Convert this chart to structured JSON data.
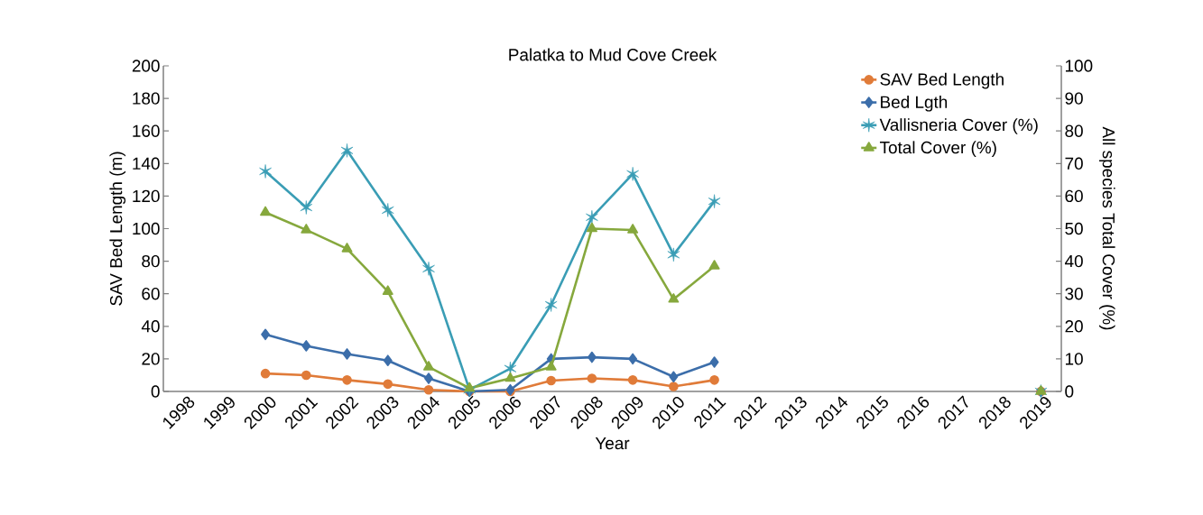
{
  "chart_data": {
    "type": "line",
    "title": "Palatka to Mud Cove Creek",
    "xlabel": "Year",
    "ylabel": "SAV Bed Length (m)",
    "y2label": "All species Total Cover (%)",
    "categories": [
      "1998",
      "1999",
      "2000",
      "2001",
      "2002",
      "2003",
      "2004",
      "2005",
      "2006",
      "2007",
      "2008",
      "2009",
      "2010",
      "2011",
      "2012",
      "2013",
      "2014",
      "2015",
      "2016",
      "2017",
      "2018",
      "2019"
    ],
    "series": [
      {
        "name": "SAV Bed Length",
        "color": "#e07b39",
        "marker": "circle",
        "values": [
          null,
          null,
          11,
          10,
          7,
          4.5,
          1,
          0,
          0,
          6.6,
          8,
          7,
          3,
          7,
          null,
          null,
          null,
          null,
          null,
          null,
          null,
          0
        ]
      },
      {
        "name": "Bed Lgth",
        "color": "#3c6eaa",
        "marker": "diamond",
        "values": [
          null,
          null,
          35,
          28,
          23,
          19,
          8,
          0,
          1,
          20,
          21,
          20,
          9,
          18,
          null,
          null,
          null,
          null,
          null,
          null,
          null,
          0
        ]
      },
      {
        "name": "Vallisneria Cover (%)",
        "color": "#3a9db5",
        "marker": "cross",
        "axis": "y2",
        "values": [
          null,
          null,
          67.6,
          56.5,
          74,
          55.7,
          37.7,
          0.5,
          7,
          26.6,
          53.5,
          66.8,
          42,
          58.4,
          null,
          null,
          null,
          null,
          null,
          null,
          null,
          0
        ]
      },
      {
        "name": "Total Cover (%)",
        "color": "#86a83d",
        "marker": "triangle",
        "axis": "y2",
        "values": [
          null,
          null,
          55,
          49.6,
          43.8,
          30.7,
          7.5,
          1,
          4,
          7.5,
          50,
          49.6,
          28.3,
          38.5,
          null,
          null,
          null,
          null,
          null,
          null,
          null,
          0
        ]
      }
    ],
    "ylim": [
      0,
      200
    ],
    "yticks": [
      0,
      20,
      40,
      60,
      80,
      100,
      120,
      140,
      160,
      180,
      200
    ],
    "y2lim": [
      0,
      100
    ],
    "y2ticks": [
      0,
      10,
      20,
      30,
      40,
      50,
      60,
      70,
      80,
      90,
      100
    ],
    "legend": "top right",
    "grid": false
  }
}
